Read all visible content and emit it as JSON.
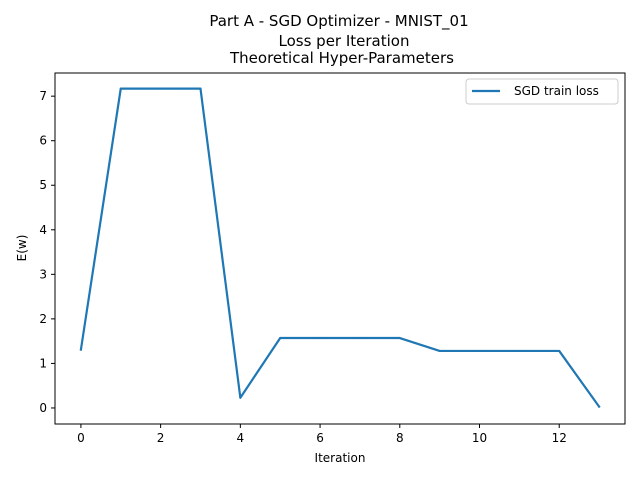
{
  "chart_data": {
    "type": "line",
    "title_lines": [
      "Part A -  SGD Optimizer - MNIST_01",
      "Loss per Iteration",
      "Theoretical Hyper-Parameters"
    ],
    "xlabel": "Iteration",
    "ylabel": "E(w)",
    "xlim": [
      -0.65,
      13.65
    ],
    "ylim": [
      -0.36,
      7.52
    ],
    "xticks": [
      0,
      2,
      4,
      6,
      8,
      10,
      12
    ],
    "yticks": [
      0,
      1,
      2,
      3,
      4,
      5,
      6,
      7
    ],
    "legend_position": "top-right",
    "line_color": "#1f77b4",
    "series": [
      {
        "name": "SGD train loss",
        "x": [
          0,
          1,
          2,
          3,
          4,
          5,
          6,
          7,
          8,
          9,
          10,
          11,
          12,
          13
        ],
        "y": [
          1.31,
          7.17,
          7.17,
          7.17,
          0.23,
          1.57,
          1.57,
          1.57,
          1.57,
          1.28,
          1.28,
          1.28,
          1.28,
          0.03
        ]
      }
    ]
  }
}
